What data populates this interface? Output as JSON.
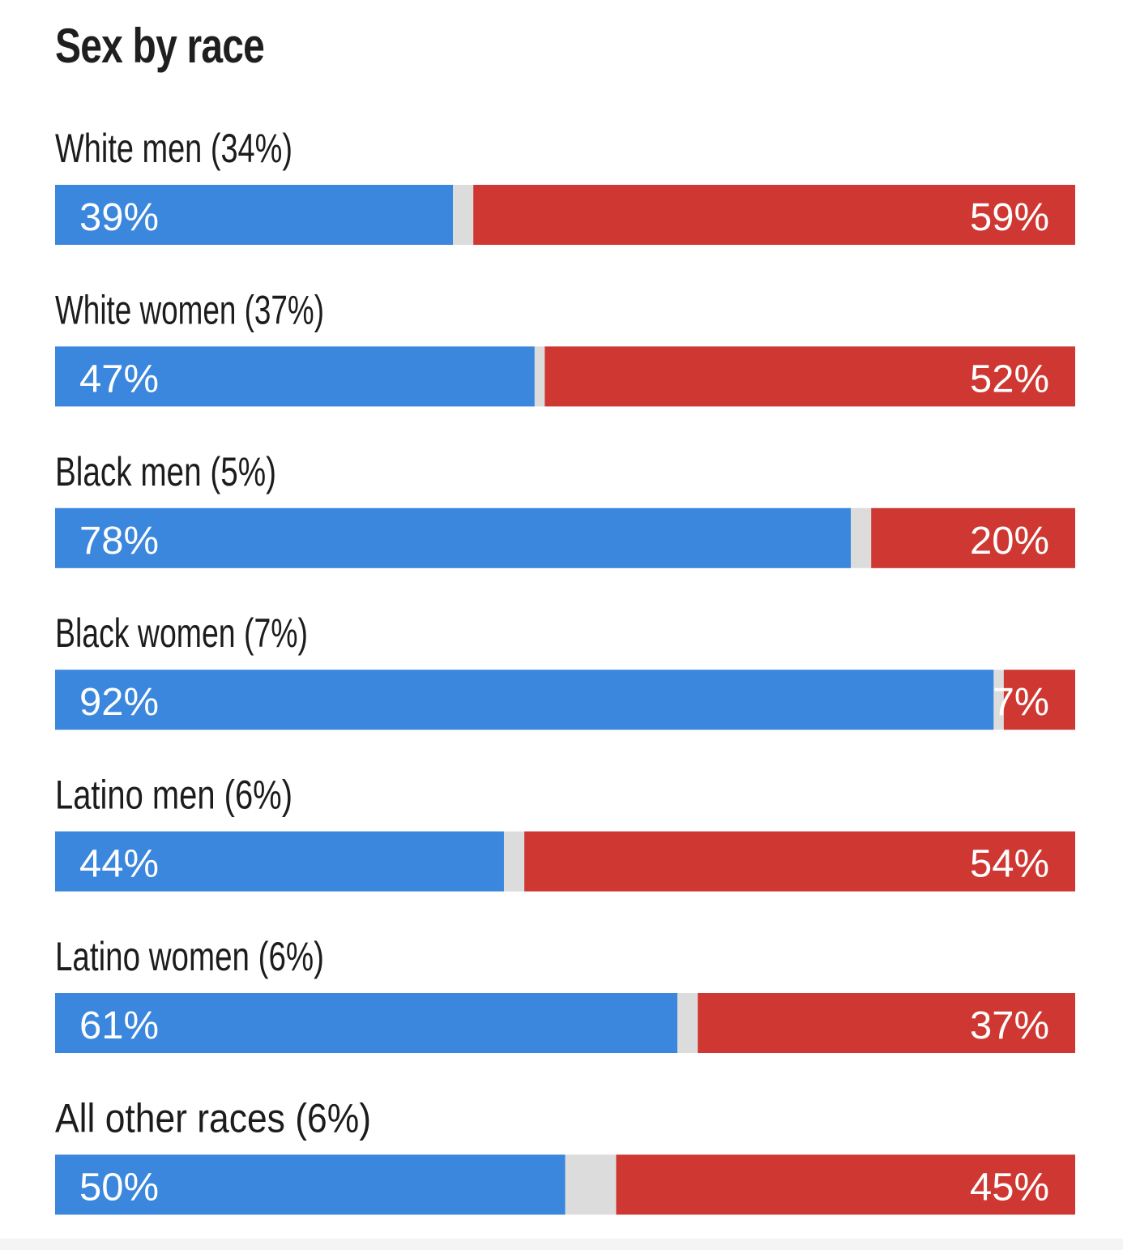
{
  "chart_data": {
    "type": "bar",
    "stacked": true,
    "orientation": "horizontal",
    "title": "Sex by race",
    "xlabel": "",
    "ylabel": "",
    "xlim": [
      0,
      100
    ],
    "categories": [
      "White men (34%)",
      "White women (37%)",
      "Black men (5%)",
      "Black women (7%)",
      "Latino men (6%)",
      "Latino women (6%)",
      "All other races (6%)"
    ],
    "series": [
      {
        "name": "Blue",
        "color": "#3a87dd",
        "values": [
          39,
          47,
          78,
          92,
          44,
          61,
          50
        ],
        "labels": [
          "39%",
          "47%",
          "78%",
          "92%",
          "44%",
          "61%",
          "50%"
        ]
      },
      {
        "name": "Red",
        "color": "#cf3832",
        "values": [
          59,
          52,
          20,
          7,
          54,
          37,
          45
        ],
        "labels": [
          "59%",
          "52%",
          "20%",
          "7%",
          "54%",
          "37%",
          "45%"
        ]
      }
    ],
    "gap_color": "#dcdcdc"
  }
}
